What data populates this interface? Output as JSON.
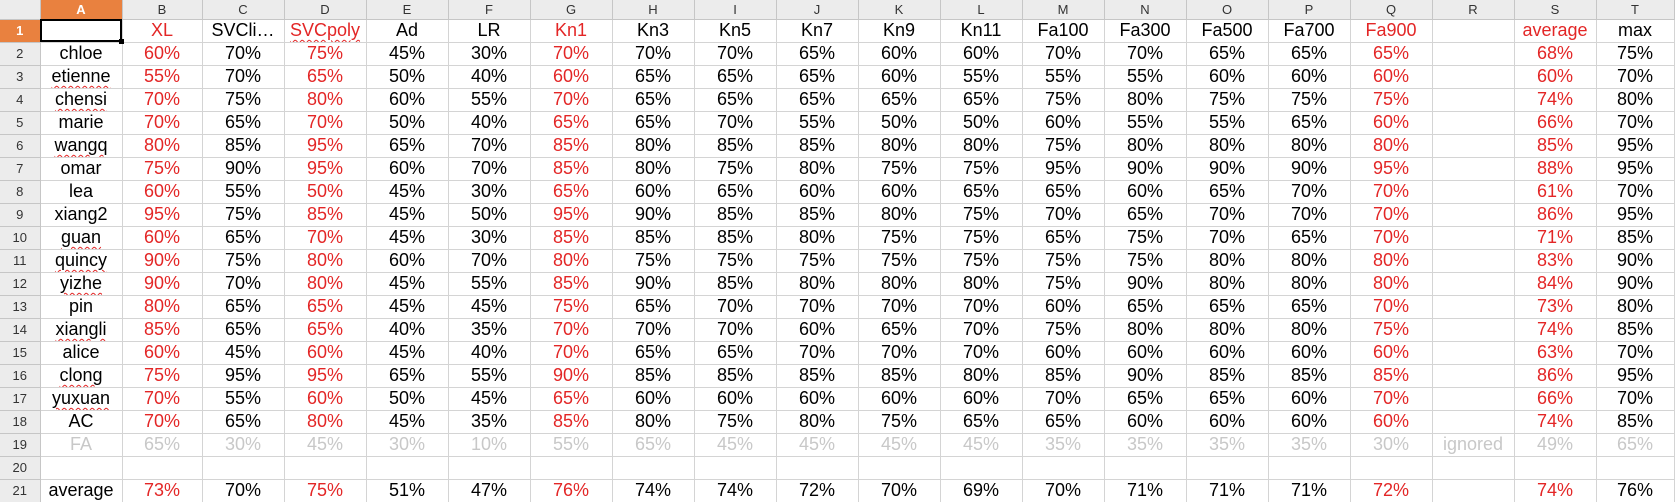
{
  "columns": [
    "A",
    "B",
    "C",
    "D",
    "E",
    "F",
    "G",
    "H",
    "I",
    "J",
    "K",
    "L",
    "M",
    "N",
    "O",
    "P",
    "Q",
    "R",
    "S",
    "T"
  ],
  "selected_column": "A",
  "selected_row": 1,
  "header_row": [
    "",
    "XL",
    "SVCli…",
    "SVCpoly",
    "Ad",
    "LR",
    "Kn1",
    "Kn3",
    "Kn5",
    "Kn7",
    "Kn9",
    "Kn11",
    "Fa100",
    "Fa300",
    "Fa500",
    "Fa700",
    "Fa900",
    "",
    "average",
    "max"
  ],
  "red_columns": [
    1,
    3,
    6,
    16,
    18
  ],
  "spell_columns_header": [
    2,
    3
  ],
  "rows": [
    {
      "n": 2,
      "cells": [
        "chloe",
        "60%",
        "70%",
        "75%",
        "45%",
        "30%",
        "70%",
        "70%",
        "70%",
        "65%",
        "60%",
        "60%",
        "70%",
        "70%",
        "65%",
        "65%",
        "65%",
        "",
        "68%",
        "75%"
      ]
    },
    {
      "n": 3,
      "cells": [
        "etienne",
        "55%",
        "70%",
        "65%",
        "50%",
        "40%",
        "60%",
        "65%",
        "65%",
        "65%",
        "60%",
        "55%",
        "55%",
        "55%",
        "60%",
        "60%",
        "60%",
        "",
        "60%",
        "70%"
      ],
      "spell": true
    },
    {
      "n": 4,
      "cells": [
        "chensi",
        "70%",
        "75%",
        "80%",
        "60%",
        "55%",
        "70%",
        "65%",
        "65%",
        "65%",
        "65%",
        "65%",
        "75%",
        "80%",
        "75%",
        "75%",
        "75%",
        "",
        "74%",
        "80%"
      ],
      "spell": true
    },
    {
      "n": 5,
      "cells": [
        "marie",
        "70%",
        "65%",
        "70%",
        "50%",
        "40%",
        "65%",
        "65%",
        "70%",
        "55%",
        "50%",
        "50%",
        "60%",
        "55%",
        "55%",
        "65%",
        "60%",
        "",
        "66%",
        "70%"
      ]
    },
    {
      "n": 6,
      "cells": [
        "wangq",
        "80%",
        "85%",
        "95%",
        "65%",
        "70%",
        "85%",
        "80%",
        "85%",
        "85%",
        "80%",
        "80%",
        "75%",
        "80%",
        "80%",
        "80%",
        "80%",
        "",
        "85%",
        "95%"
      ],
      "spell": true
    },
    {
      "n": 7,
      "cells": [
        "omar",
        "75%",
        "90%",
        "95%",
        "60%",
        "70%",
        "85%",
        "80%",
        "75%",
        "80%",
        "75%",
        "75%",
        "95%",
        "90%",
        "90%",
        "90%",
        "95%",
        "",
        "88%",
        "95%"
      ]
    },
    {
      "n": 8,
      "cells": [
        "lea",
        "60%",
        "55%",
        "50%",
        "45%",
        "30%",
        "65%",
        "60%",
        "65%",
        "60%",
        "60%",
        "65%",
        "65%",
        "60%",
        "65%",
        "70%",
        "70%",
        "",
        "61%",
        "70%"
      ]
    },
    {
      "n": 9,
      "cells": [
        "xiang2",
        "95%",
        "75%",
        "85%",
        "45%",
        "50%",
        "95%",
        "90%",
        "85%",
        "85%",
        "80%",
        "75%",
        "70%",
        "65%",
        "70%",
        "70%",
        "70%",
        "",
        "86%",
        "95%"
      ]
    },
    {
      "n": 10,
      "cells": [
        "guan",
        "60%",
        "65%",
        "70%",
        "45%",
        "30%",
        "85%",
        "85%",
        "85%",
        "80%",
        "75%",
        "75%",
        "65%",
        "75%",
        "70%",
        "65%",
        "70%",
        "",
        "71%",
        "85%"
      ],
      "spell": true
    },
    {
      "n": 11,
      "cells": [
        "quincy",
        "90%",
        "75%",
        "80%",
        "60%",
        "70%",
        "80%",
        "75%",
        "75%",
        "75%",
        "75%",
        "75%",
        "75%",
        "75%",
        "80%",
        "80%",
        "80%",
        "",
        "83%",
        "90%"
      ],
      "spell": true
    },
    {
      "n": 12,
      "cells": [
        "yizhe",
        "90%",
        "70%",
        "80%",
        "45%",
        "55%",
        "85%",
        "90%",
        "85%",
        "80%",
        "80%",
        "80%",
        "75%",
        "90%",
        "80%",
        "80%",
        "80%",
        "",
        "84%",
        "90%"
      ],
      "spell": true
    },
    {
      "n": 13,
      "cells": [
        "pin",
        "80%",
        "65%",
        "65%",
        "45%",
        "45%",
        "75%",
        "65%",
        "70%",
        "70%",
        "70%",
        "70%",
        "60%",
        "65%",
        "65%",
        "65%",
        "70%",
        "",
        "73%",
        "80%"
      ]
    },
    {
      "n": 14,
      "cells": [
        "xiangli",
        "85%",
        "65%",
        "65%",
        "40%",
        "35%",
        "70%",
        "70%",
        "70%",
        "60%",
        "65%",
        "70%",
        "75%",
        "80%",
        "80%",
        "80%",
        "75%",
        "",
        "74%",
        "85%"
      ],
      "spell": true
    },
    {
      "n": 15,
      "cells": [
        "alice",
        "60%",
        "45%",
        "60%",
        "45%",
        "40%",
        "70%",
        "65%",
        "65%",
        "70%",
        "70%",
        "70%",
        "60%",
        "60%",
        "60%",
        "60%",
        "60%",
        "",
        "63%",
        "70%"
      ]
    },
    {
      "n": 16,
      "cells": [
        "clong",
        "75%",
        "95%",
        "95%",
        "65%",
        "55%",
        "90%",
        "85%",
        "85%",
        "85%",
        "85%",
        "80%",
        "85%",
        "90%",
        "85%",
        "85%",
        "85%",
        "",
        "86%",
        "95%"
      ],
      "spell": true
    },
    {
      "n": 17,
      "cells": [
        "yuxuan",
        "70%",
        "55%",
        "60%",
        "50%",
        "45%",
        "65%",
        "60%",
        "60%",
        "60%",
        "60%",
        "60%",
        "70%",
        "65%",
        "65%",
        "60%",
        "70%",
        "",
        "66%",
        "70%"
      ],
      "spell": true
    },
    {
      "n": 18,
      "cells": [
        "AC",
        "70%",
        "65%",
        "80%",
        "45%",
        "35%",
        "85%",
        "80%",
        "75%",
        "80%",
        "75%",
        "65%",
        "65%",
        "60%",
        "60%",
        "60%",
        "60%",
        "",
        "74%",
        "85%"
      ]
    }
  ],
  "fa_row": {
    "n": 19,
    "cells": [
      "FA",
      "65%",
      "30%",
      "45%",
      "30%",
      "10%",
      "55%",
      "65%",
      "45%",
      "45%",
      "45%",
      "45%",
      "35%",
      "35%",
      "35%",
      "35%",
      "30%",
      "ignored",
      "49%",
      "65%"
    ]
  },
  "empty_row": {
    "n": 20
  },
  "avg_row": {
    "n": 21,
    "cells": [
      "average",
      "73%",
      "70%",
      "75%",
      "51%",
      "47%",
      "76%",
      "74%",
      "74%",
      "72%",
      "70%",
      "69%",
      "70%",
      "71%",
      "71%",
      "71%",
      "72%",
      "",
      "74%",
      "76%"
    ]
  },
  "colors": {
    "text_red": "#e32626",
    "text_gray": "#c8c8c8",
    "header_selected": "#e9813f",
    "header_bg": "#ececec",
    "grid": "#d4d4d4"
  }
}
